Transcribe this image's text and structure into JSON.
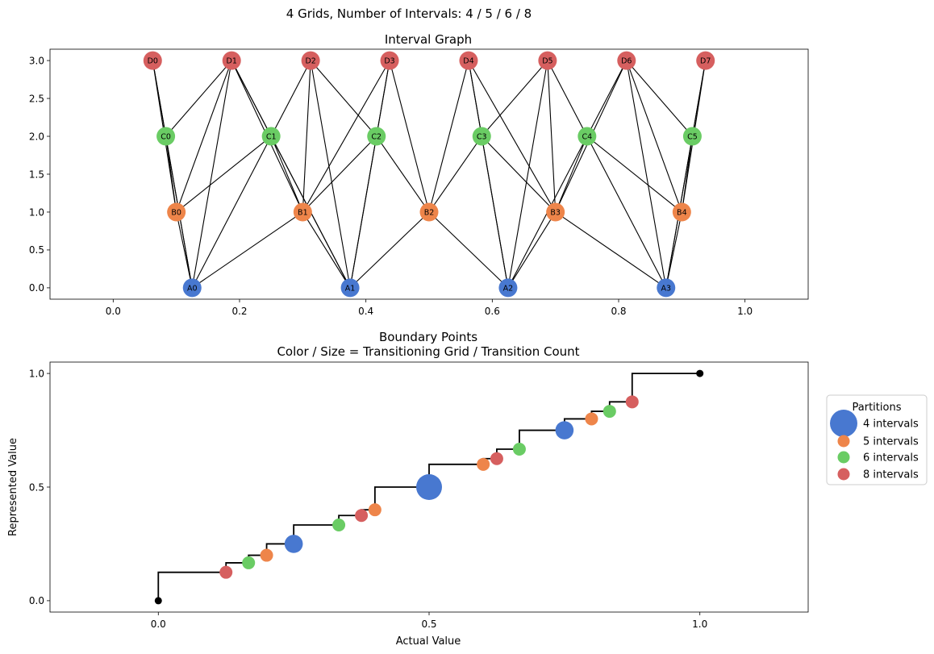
{
  "figure": {
    "suptitle": "4 Grids, Number of Intervals: 4 / 5 / 6 / 8"
  },
  "colors": {
    "4": "#4878d0",
    "5": "#ee854a",
    "6": "#6acc64",
    "8": "#d65f5f",
    "endpoint": "#000000",
    "edge": "#000000"
  },
  "chart_data": [
    {
      "type": "network",
      "title": "Interval Graph",
      "xlim": [
        -0.1,
        1.1
      ],
      "ylim": [
        -0.15,
        3.15
      ],
      "xticks": [
        0.0,
        0.2,
        0.4,
        0.6,
        0.8,
        1.0
      ],
      "xtick_labels": [
        "0.0",
        "0.2",
        "0.4",
        "0.6",
        "0.8",
        "1.0"
      ],
      "yticks": [
        0.0,
        0.5,
        1.0,
        1.5,
        2.0,
        2.5,
        3.0
      ],
      "ytick_labels": [
        "0.0",
        "0.5",
        "1.0",
        "1.5",
        "2.0",
        "2.5",
        "3.0"
      ],
      "nodes": [
        {
          "id": "A0",
          "x": 0.125,
          "y": 0,
          "group": "4"
        },
        {
          "id": "A1",
          "x": 0.375,
          "y": 0,
          "group": "4"
        },
        {
          "id": "A2",
          "x": 0.625,
          "y": 0,
          "group": "4"
        },
        {
          "id": "A3",
          "x": 0.875,
          "y": 0,
          "group": "4"
        },
        {
          "id": "B0",
          "x": 0.1,
          "y": 1,
          "group": "5"
        },
        {
          "id": "B1",
          "x": 0.3,
          "y": 1,
          "group": "5"
        },
        {
          "id": "B2",
          "x": 0.5,
          "y": 1,
          "group": "5"
        },
        {
          "id": "B3",
          "x": 0.7,
          "y": 1,
          "group": "5"
        },
        {
          "id": "B4",
          "x": 0.9,
          "y": 1,
          "group": "5"
        },
        {
          "id": "C0",
          "x": 0.0833,
          "y": 2,
          "group": "6"
        },
        {
          "id": "C1",
          "x": 0.25,
          "y": 2,
          "group": "6"
        },
        {
          "id": "C2",
          "x": 0.4167,
          "y": 2,
          "group": "6"
        },
        {
          "id": "C3",
          "x": 0.5833,
          "y": 2,
          "group": "6"
        },
        {
          "id": "C4",
          "x": 0.75,
          "y": 2,
          "group": "6"
        },
        {
          "id": "C5",
          "x": 0.9167,
          "y": 2,
          "group": "6"
        },
        {
          "id": "D0",
          "x": 0.0625,
          "y": 3,
          "group": "8"
        },
        {
          "id": "D1",
          "x": 0.1875,
          "y": 3,
          "group": "8"
        },
        {
          "id": "D2",
          "x": 0.3125,
          "y": 3,
          "group": "8"
        },
        {
          "id": "D3",
          "x": 0.4375,
          "y": 3,
          "group": "8"
        },
        {
          "id": "D4",
          "x": 0.5625,
          "y": 3,
          "group": "8"
        },
        {
          "id": "D5",
          "x": 0.6875,
          "y": 3,
          "group": "8"
        },
        {
          "id": "D6",
          "x": 0.8125,
          "y": 3,
          "group": "8"
        },
        {
          "id": "D7",
          "x": 0.9375,
          "y": 3,
          "group": "8"
        }
      ],
      "edges": [
        [
          "A0",
          "B0"
        ],
        [
          "A0",
          "B1"
        ],
        [
          "A0",
          "C0"
        ],
        [
          "A0",
          "C1"
        ],
        [
          "A0",
          "D0"
        ],
        [
          "A0",
          "D1"
        ],
        [
          "A1",
          "B1"
        ],
        [
          "A1",
          "B2"
        ],
        [
          "A1",
          "C1"
        ],
        [
          "A1",
          "C2"
        ],
        [
          "A1",
          "D1"
        ],
        [
          "A1",
          "D2"
        ],
        [
          "A1",
          "D3"
        ],
        [
          "A2",
          "B2"
        ],
        [
          "A2",
          "B3"
        ],
        [
          "A2",
          "C3"
        ],
        [
          "A2",
          "C4"
        ],
        [
          "A2",
          "D4"
        ],
        [
          "A2",
          "D5"
        ],
        [
          "A3",
          "B3"
        ],
        [
          "A3",
          "B4"
        ],
        [
          "A3",
          "C4"
        ],
        [
          "A3",
          "C5"
        ],
        [
          "A3",
          "D6"
        ],
        [
          "A3",
          "D7"
        ],
        [
          "B0",
          "C0"
        ],
        [
          "B0",
          "C1"
        ],
        [
          "B0",
          "D0"
        ],
        [
          "B0",
          "D1"
        ],
        [
          "B1",
          "C1"
        ],
        [
          "B1",
          "C2"
        ],
        [
          "B1",
          "D1"
        ],
        [
          "B1",
          "D2"
        ],
        [
          "B1",
          "D3"
        ],
        [
          "B2",
          "C2"
        ],
        [
          "B2",
          "C3"
        ],
        [
          "B2",
          "D3"
        ],
        [
          "B2",
          "D4"
        ],
        [
          "B3",
          "C3"
        ],
        [
          "B3",
          "C4"
        ],
        [
          "B3",
          "D4"
        ],
        [
          "B3",
          "D5"
        ],
        [
          "B3",
          "D6"
        ],
        [
          "B4",
          "C4"
        ],
        [
          "B4",
          "C5"
        ],
        [
          "B4",
          "D6"
        ],
        [
          "B4",
          "D7"
        ],
        [
          "C0",
          "D0"
        ],
        [
          "C0",
          "D1"
        ],
        [
          "C1",
          "D1"
        ],
        [
          "C1",
          "D2"
        ],
        [
          "C2",
          "D2"
        ],
        [
          "C2",
          "D3"
        ],
        [
          "C3",
          "D4"
        ],
        [
          "C3",
          "D5"
        ],
        [
          "C4",
          "D5"
        ],
        [
          "C4",
          "D6"
        ],
        [
          "C5",
          "D6"
        ],
        [
          "C5",
          "D7"
        ]
      ]
    },
    {
      "type": "scatter",
      "title_lines": [
        "Boundary Points",
        "Color / Size = Transitioning Grid / Transition Count"
      ],
      "xlabel": "Actual Value",
      "ylabel": "Represented Value",
      "xlim": [
        -0.2,
        1.2
      ],
      "ylim": [
        -0.05,
        1.05
      ],
      "xticks": [
        0.0,
        0.5,
        1.0
      ],
      "xtick_labels": [
        "0.0",
        "0.5",
        "1.0"
      ],
      "yticks": [
        0.0,
        0.5,
        1.0
      ],
      "ytick_labels": [
        "0.0",
        "0.5",
        "1.0"
      ],
      "step_line": {
        "x": [
          0.0,
          0.125,
          0.1667,
          0.2,
          0.25,
          0.3333,
          0.375,
          0.4,
          0.5,
          0.6,
          0.625,
          0.6667,
          0.75,
          0.8,
          0.8333,
          0.875,
          1.0
        ],
        "y": [
          0.0,
          0.125,
          0.1667,
          0.2,
          0.25,
          0.3333,
          0.375,
          0.4,
          0.5,
          0.6,
          0.625,
          0.6667,
          0.75,
          0.8,
          0.8333,
          0.875,
          1.0
        ]
      },
      "points": [
        {
          "x": 0.0,
          "y": 0.0,
          "group": "endpoint",
          "count": 0
        },
        {
          "x": 0.125,
          "y": 0.125,
          "group": "8",
          "count": 1
        },
        {
          "x": 0.1667,
          "y": 0.1667,
          "group": "6",
          "count": 1
        },
        {
          "x": 0.2,
          "y": 0.2,
          "group": "5",
          "count": 1
        },
        {
          "x": 0.25,
          "y": 0.25,
          "group": "4",
          "count": 2
        },
        {
          "x": 0.3333,
          "y": 0.3333,
          "group": "6",
          "count": 1
        },
        {
          "x": 0.375,
          "y": 0.375,
          "group": "8",
          "count": 1
        },
        {
          "x": 0.4,
          "y": 0.4,
          "group": "5",
          "count": 1
        },
        {
          "x": 0.5,
          "y": 0.5,
          "group": "4",
          "count": 4
        },
        {
          "x": 0.6,
          "y": 0.6,
          "group": "5",
          "count": 1
        },
        {
          "x": 0.625,
          "y": 0.625,
          "group": "8",
          "count": 1
        },
        {
          "x": 0.6667,
          "y": 0.6667,
          "group": "6",
          "count": 1
        },
        {
          "x": 0.75,
          "y": 0.75,
          "group": "4",
          "count": 2
        },
        {
          "x": 0.8,
          "y": 0.8,
          "group": "5",
          "count": 1
        },
        {
          "x": 0.8333,
          "y": 0.8333,
          "group": "6",
          "count": 1
        },
        {
          "x": 0.875,
          "y": 0.875,
          "group": "8",
          "count": 1
        },
        {
          "x": 1.0,
          "y": 1.0,
          "group": "endpoint",
          "count": 0
        }
      ],
      "legend": {
        "title": "Partitions",
        "placement": "right",
        "entries": [
          {
            "label": "4 intervals",
            "group": "4"
          },
          {
            "label": "5 intervals",
            "group": "5"
          },
          {
            "label": "6 intervals",
            "group": "6"
          },
          {
            "label": "8 intervals",
            "group": "8"
          }
        ]
      }
    }
  ]
}
